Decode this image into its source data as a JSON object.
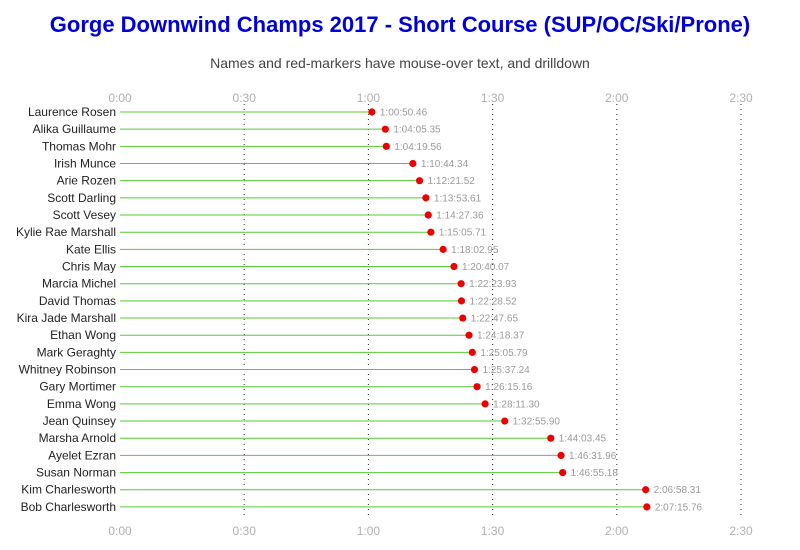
{
  "title": "Gorge Downwind Champs 2017 - Short Course (SUP/OC/Ski/Prone)",
  "subtitle": "Names and red-markers have mouse-over text, and drilldown",
  "colors": {
    "title": "#0000dd",
    "line": "#55cc33",
    "marker": "#ee0000",
    "grid": "#222222"
  },
  "chart_data": {
    "type": "scatter",
    "x_unit": "minutes",
    "xlim": [
      0,
      150
    ],
    "x_ticks": [
      {
        "value": 0,
        "label": "0:00"
      },
      {
        "value": 30,
        "label": "0:30"
      },
      {
        "value": 60,
        "label": "1:00"
      },
      {
        "value": 90,
        "label": "1:30"
      },
      {
        "value": 120,
        "label": "2:00"
      },
      {
        "value": 150,
        "label": "2:30"
      }
    ],
    "grid": "vertical dotted",
    "series": [
      {
        "values": [
          {
            "name": "Laurence Rosen",
            "time": "1:00:50.46",
            "minutes": 60.84
          },
          {
            "name": "Alika Guillaume",
            "time": "1:04:05.35",
            "minutes": 64.09
          },
          {
            "name": "Thomas Mohr",
            "time": "1:04:19.56",
            "minutes": 64.33
          },
          {
            "name": "Irish Munce",
            "time": "1:10:44.34",
            "minutes": 70.74
          },
          {
            "name": "Arie Rozen",
            "time": "1:12:21.52",
            "minutes": 72.36
          },
          {
            "name": "Scott Darling",
            "time": "1:13:53.61",
            "minutes": 73.89
          },
          {
            "name": "Scott Vesey",
            "time": "1:14:27.36",
            "minutes": 74.46
          },
          {
            "name": "Kylie Rae Marshall",
            "time": "1:15:05.71",
            "minutes": 75.1
          },
          {
            "name": "Kate Ellis",
            "time": "1:18:02.95",
            "minutes": 78.05
          },
          {
            "name": "Chris May",
            "time": "1:20:40.07",
            "minutes": 80.67
          },
          {
            "name": "Marcia Michel",
            "time": "1:22:23.93",
            "minutes": 82.4
          },
          {
            "name": "David Thomas",
            "time": "1:22:28.52",
            "minutes": 82.48
          },
          {
            "name": "Kira Jade Marshall",
            "time": "1:22:47.65",
            "minutes": 82.79
          },
          {
            "name": "Ethan Wong",
            "time": "1:24:18.37",
            "minutes": 84.31
          },
          {
            "name": "Mark Geraghty",
            "time": "1:25:05.79",
            "minutes": 85.1
          },
          {
            "name": "Whitney Robinson",
            "time": "1:25:37.24",
            "minutes": 85.62
          },
          {
            "name": "Gary Mortimer",
            "time": "1:26:15.16",
            "minutes": 86.25
          },
          {
            "name": "Emma Wong",
            "time": "1:28:11.30",
            "minutes": 88.19
          },
          {
            "name": "Jean Quinsey",
            "time": "1:32:55.90",
            "minutes": 92.93
          },
          {
            "name": "Marsha Arnold",
            "time": "1:44:03.45",
            "minutes": 104.06
          },
          {
            "name": "Ayelet Ezran",
            "time": "1:46:31.96",
            "minutes": 106.53
          },
          {
            "name": "Susan Norman",
            "time": "1:46:55.18",
            "minutes": 106.92
          },
          {
            "name": "Kim Charlesworth",
            "time": "2:06:58.31",
            "minutes": 126.97
          },
          {
            "name": "Bob Charlesworth",
            "time": "2:07:15.76",
            "minutes": 127.26
          }
        ]
      }
    ]
  }
}
